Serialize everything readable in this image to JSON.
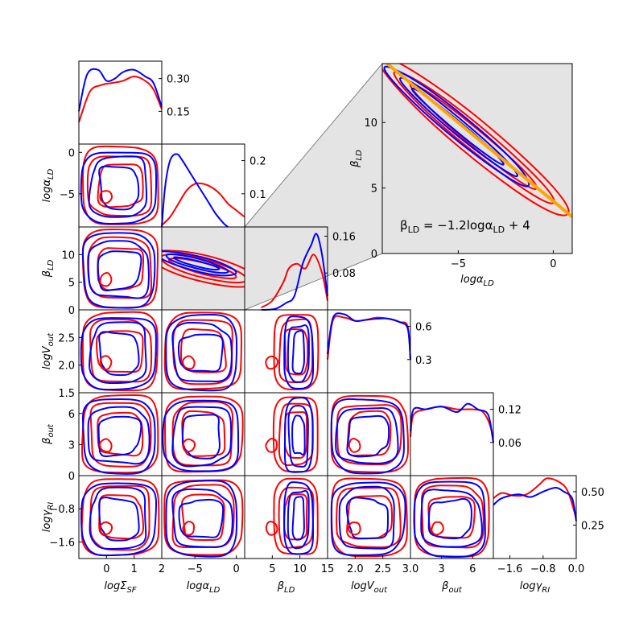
{
  "colors": {
    "series_a": "#ff0000",
    "series_b": "#0000ff",
    "fit_line": "#ffa500",
    "highlight_bg": "#e4e4e4",
    "connector": "#808080"
  },
  "chart_data": {
    "type": "corner-plot",
    "parameters": [
      "logΣ_SF",
      "logα_LD",
      "β_LD",
      "logV_out",
      "β_out",
      "logγ_RI"
    ],
    "axis_labels": [
      "logΣ",
      "logα",
      "β",
      "logV",
      "β",
      "logγ"
    ],
    "axis_label_subscripts": [
      "SF",
      "LD",
      "LD",
      "out",
      "out",
      "RI"
    ],
    "ranges": [
      [
        -1.0,
        2.0
      ],
      [
        -9.0,
        1.0
      ],
      [
        0.0,
        15.0
      ],
      [
        1.5,
        3.0
      ],
      [
        0.0,
        8.0
      ],
      [
        -2.0,
        0.0
      ]
    ],
    "x_tick_labels": [
      [
        "0",
        "1",
        "2"
      ],
      [
        "−5",
        "0"
      ],
      [
        "5",
        "10",
        "15"
      ],
      [
        "2.0",
        "2.5",
        "3.0"
      ],
      [
        "3",
        "6"
      ],
      [
        "−1.6",
        "−0.8",
        "0.0"
      ]
    ],
    "y_tick_labels": [
      [],
      [
        "0",
        "−5"
      ],
      [
        "10",
        "5",
        "0"
      ],
      [
        "2.5",
        "2.0",
        "1.5"
      ],
      [
        "6",
        "3",
        "0"
      ],
      [
        "−0.8",
        "−1.6"
      ]
    ],
    "x_ticks": [
      [
        0,
        1,
        2
      ],
      [
        -5,
        0
      ],
      [
        5,
        10,
        15
      ],
      [
        2.0,
        2.5,
        3.0
      ],
      [
        3,
        6
      ],
      [
        -1.6,
        -0.8,
        0.0
      ]
    ],
    "y_ticks": [
      [],
      [
        0,
        -5
      ],
      [
        10,
        5,
        0
      ],
      [
        2.5,
        2.0,
        1.5
      ],
      [
        6,
        3,
        0
      ],
      [
        -0.8,
        -1.6
      ]
    ],
    "diagonal_density_ticks": [
      [
        "0.30",
        "0.15"
      ],
      [
        "0.2",
        "0.1"
      ],
      [
        "0.16",
        "0.08"
      ],
      [
        "0.6",
        "0.3"
      ],
      [
        "0.12",
        "0.06"
      ],
      [
        "0.50",
        "0.25"
      ]
    ],
    "diagonal_density_tick_values": [
      [
        0.3,
        0.15
      ],
      [
        0.2,
        0.1
      ],
      [
        0.16,
        0.08
      ],
      [
        0.6,
        0.3
      ],
      [
        0.12,
        0.06
      ],
      [
        0.5,
        0.25
      ]
    ],
    "diagonal_density_ylim": [
      [
        0,
        0.38
      ],
      [
        0,
        0.25
      ],
      [
        0,
        0.18
      ],
      [
        0,
        0.75
      ],
      [
        0,
        0.15
      ],
      [
        0,
        0.62
      ]
    ],
    "series": [
      {
        "color": "#ff0000",
        "marginals": [
          [
            [
              -1.0,
              0.1
            ],
            [
              -0.6,
              0.24
            ],
            [
              -0.2,
              0.27
            ],
            [
              0.2,
              0.28
            ],
            [
              0.6,
              0.29
            ],
            [
              1.0,
              0.31
            ],
            [
              1.4,
              0.29
            ],
            [
              1.7,
              0.25
            ],
            [
              2.0,
              0.16
            ]
          ],
          [
            [
              -9.0,
              0.005
            ],
            [
              -8.0,
              0.03
            ],
            [
              -7.0,
              0.07
            ],
            [
              -6.0,
              0.11
            ],
            [
              -5.0,
              0.13
            ],
            [
              -4.0,
              0.13
            ],
            [
              -3.0,
              0.12
            ],
            [
              -2.0,
              0.1
            ],
            [
              -1.0,
              0.07
            ],
            [
              0.0,
              0.05
            ],
            [
              1.0,
              0.03
            ]
          ],
          [
            [
              3.0,
              0.005
            ],
            [
              5.0,
              0.02
            ],
            [
              7.0,
              0.06
            ],
            [
              8.0,
              0.09
            ],
            [
              9.5,
              0.1
            ],
            [
              11.0,
              0.09
            ],
            [
              12.5,
              0.12
            ],
            [
              14.0,
              0.08
            ],
            [
              15.0,
              0.02
            ]
          ],
          [
            [
              1.5,
              0.3
            ],
            [
              1.6,
              0.66
            ],
            [
              1.8,
              0.68
            ],
            [
              2.0,
              0.65
            ],
            [
              2.2,
              0.66
            ],
            [
              2.4,
              0.68
            ],
            [
              2.6,
              0.67
            ],
            [
              2.8,
              0.64
            ],
            [
              2.95,
              0.6
            ],
            [
              3.0,
              0.3
            ]
          ],
          [
            [
              0.0,
              0.07
            ],
            [
              0.3,
              0.11
            ],
            [
              1.5,
              0.12
            ],
            [
              3.0,
              0.125
            ],
            [
              4.5,
              0.12
            ],
            [
              6.0,
              0.12
            ],
            [
              7.0,
              0.115
            ],
            [
              7.7,
              0.09
            ],
            [
              8.0,
              0.06
            ]
          ],
          [
            [
              -2.0,
              0.45
            ],
            [
              -1.8,
              0.49
            ],
            [
              -1.5,
              0.47
            ],
            [
              -1.2,
              0.48
            ],
            [
              -0.9,
              0.55
            ],
            [
              -0.7,
              0.6
            ],
            [
              -0.4,
              0.57
            ],
            [
              -0.2,
              0.5
            ],
            [
              0.0,
              0.3
            ]
          ]
        ]
      },
      {
        "color": "#0000ff",
        "marginals": [
          [
            [
              -1.0,
              0.15
            ],
            [
              -0.7,
              0.32
            ],
            [
              -0.3,
              0.34
            ],
            [
              0.0,
              0.29
            ],
            [
              0.3,
              0.3
            ],
            [
              0.6,
              0.33
            ],
            [
              1.0,
              0.34
            ],
            [
              1.4,
              0.31
            ],
            [
              1.7,
              0.28
            ],
            [
              2.0,
              0.17
            ]
          ],
          [
            [
              -9.0,
              0.0
            ],
            [
              -8.6,
              0.12
            ],
            [
              -8.0,
              0.2
            ],
            [
              -7.2,
              0.22
            ],
            [
              -6.5,
              0.2
            ],
            [
              -5.5,
              0.16
            ],
            [
              -4.5,
              0.12
            ],
            [
              -3.5,
              0.08
            ],
            [
              -2.5,
              0.04
            ],
            [
              -1.5,
              0.01
            ],
            [
              -1.0,
              0.0
            ]
          ],
          [
            [
              3.0,
              0.0
            ],
            [
              5.5,
              0.002
            ],
            [
              7.5,
              0.015
            ],
            [
              9.0,
              0.03
            ],
            [
              10.5,
              0.1
            ],
            [
              12.0,
              0.14
            ],
            [
              13.0,
              0.165
            ],
            [
              14.0,
              0.12
            ],
            [
              15.0,
              0.03
            ]
          ],
          [
            [
              1.5,
              0.35
            ],
            [
              1.6,
              0.68
            ],
            [
              1.8,
              0.71
            ],
            [
              2.0,
              0.65
            ],
            [
              2.2,
              0.66
            ],
            [
              2.4,
              0.67
            ],
            [
              2.6,
              0.67
            ],
            [
              2.8,
              0.64
            ],
            [
              2.95,
              0.58
            ],
            [
              3.0,
              0.3
            ]
          ],
          [
            [
              0.0,
              0.08
            ],
            [
              0.3,
              0.12
            ],
            [
              1.5,
              0.12
            ],
            [
              3.0,
              0.125
            ],
            [
              4.5,
              0.115
            ],
            [
              5.5,
              0.13
            ],
            [
              6.5,
              0.12
            ],
            [
              7.5,
              0.11
            ],
            [
              8.0,
              0.06
            ]
          ],
          [
            [
              -2.0,
              0.4
            ],
            [
              -1.8,
              0.45
            ],
            [
              -1.4,
              0.48
            ],
            [
              -1.1,
              0.46
            ],
            [
              -0.8,
              0.5
            ],
            [
              -0.5,
              0.53
            ],
            [
              -0.3,
              0.5
            ],
            [
              -0.1,
              0.45
            ],
            [
              0.0,
              0.28
            ]
          ]
        ]
      }
    ],
    "zoom_panel": {
      "xlabel": "logα",
      "xlabel_subscript": "LD",
      "ylabel": "β",
      "ylabel_subscript": "LD",
      "xlim": [
        -9.0,
        1.0
      ],
      "ylim": [
        0.0,
        14.5
      ],
      "x_tick_labels": [
        "−5",
        "0"
      ],
      "x_ticks": [
        -5,
        0
      ],
      "y_tick_labels": [
        "10",
        "5",
        "0"
      ],
      "y_ticks": [
        10,
        5,
        0
      ],
      "fit_line": {
        "slope": -1.2,
        "intercept": 4,
        "x_range": [
          -9.0,
          1.0
        ]
      },
      "annotation": "β_LD = −1.2logα_LD + 4",
      "annotation_parts": {
        "beta": "β",
        "beta_sub": "LD",
        "eq": " = −1.2log",
        "alpha": "α",
        "alpha_sub": "LD",
        "const": " + 4"
      }
    },
    "grid": false,
    "legend": "none"
  }
}
